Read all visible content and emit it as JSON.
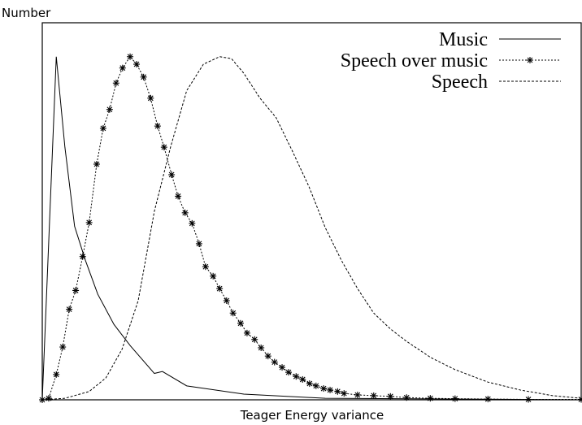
{
  "chart_data": {
    "type": "line",
    "y_label": "Number",
    "x_label": "Teager Energy variance",
    "xlim": [
      0,
      100
    ],
    "ylim": [
      0,
      100
    ],
    "legend": "upper right",
    "series": [
      {
        "name": "Music",
        "color": "#000000",
        "style": "solid",
        "x": [
          0,
          2.6,
          4.2,
          6.0,
          8.0,
          10.3,
          13.3,
          16.3,
          20.8,
          22.3,
          26.8,
          37.4,
          52.5,
          100
        ],
        "values": [
          0,
          91,
          67,
          46,
          37,
          28,
          20,
          14.4,
          7,
          7.5,
          3.7,
          1.5,
          0.4,
          0
        ]
      },
      {
        "name": "Speech over music",
        "color": "#000000",
        "style": "dotted",
        "marker": "asterisk",
        "x": [
          0,
          1.2,
          2.6,
          3.8,
          5.0,
          6.2,
          7.5,
          8.7,
          10.1,
          11.3,
          12.5,
          13.7,
          14.9,
          16.3,
          17.5,
          18.8,
          20.1,
          21.4,
          22.6,
          24.0,
          25.2,
          26.5,
          27.8,
          29.1,
          30.3,
          31.7,
          32.9,
          34.2,
          35.4,
          36.8,
          38.0,
          39.4,
          40.6,
          41.9,
          43.1,
          44.5,
          45.7,
          47.1,
          48.3,
          49.6,
          50.8,
          52.2,
          53.4,
          54.8,
          56.0,
          58.5,
          61.5,
          64.6,
          67.6,
          72,
          76.6,
          82.7,
          90.2,
          100
        ],
        "values": [
          0,
          0.4,
          6.7,
          14,
          24,
          29,
          38,
          47,
          62.5,
          72,
          77,
          84,
          88,
          91,
          89,
          85.6,
          80,
          72.6,
          67,
          59.7,
          54,
          49.6,
          46.8,
          41.4,
          35.3,
          32.8,
          29.5,
          26.3,
          23,
          20.3,
          17.7,
          16,
          13.8,
          11.6,
          10,
          8.6,
          7.3,
          6.2,
          5.4,
          4.3,
          3.7,
          3,
          2.6,
          2.2,
          1.7,
          1.3,
          1.1,
          0.9,
          0.6,
          0.4,
          0.3,
          0.2,
          0.1,
          0.1
        ]
      },
      {
        "name": "Speech",
        "color": "#000000",
        "style": "dashed",
        "x": [
          0,
          4.2,
          8.7,
          11.8,
          14.8,
          17.8,
          20.8,
          23.8,
          26.8,
          29.9,
          32.9,
          35.1,
          37.4,
          40.4,
          43.4,
          46.4,
          49.5,
          52.5,
          55.5,
          58.5,
          61.5,
          64.6,
          67.6,
          72.1,
          76.6,
          82.7,
          88.7,
          94.7,
          100
        ],
        "values": [
          0,
          0.4,
          2.2,
          5.8,
          13.4,
          26.3,
          50,
          67,
          82,
          89,
          91,
          90.5,
          86.6,
          80,
          74.8,
          66,
          56.5,
          45.7,
          37,
          29.5,
          23,
          18.8,
          15.5,
          11.2,
          8,
          4.7,
          2.6,
          1.1,
          0.4
        ]
      }
    ]
  }
}
